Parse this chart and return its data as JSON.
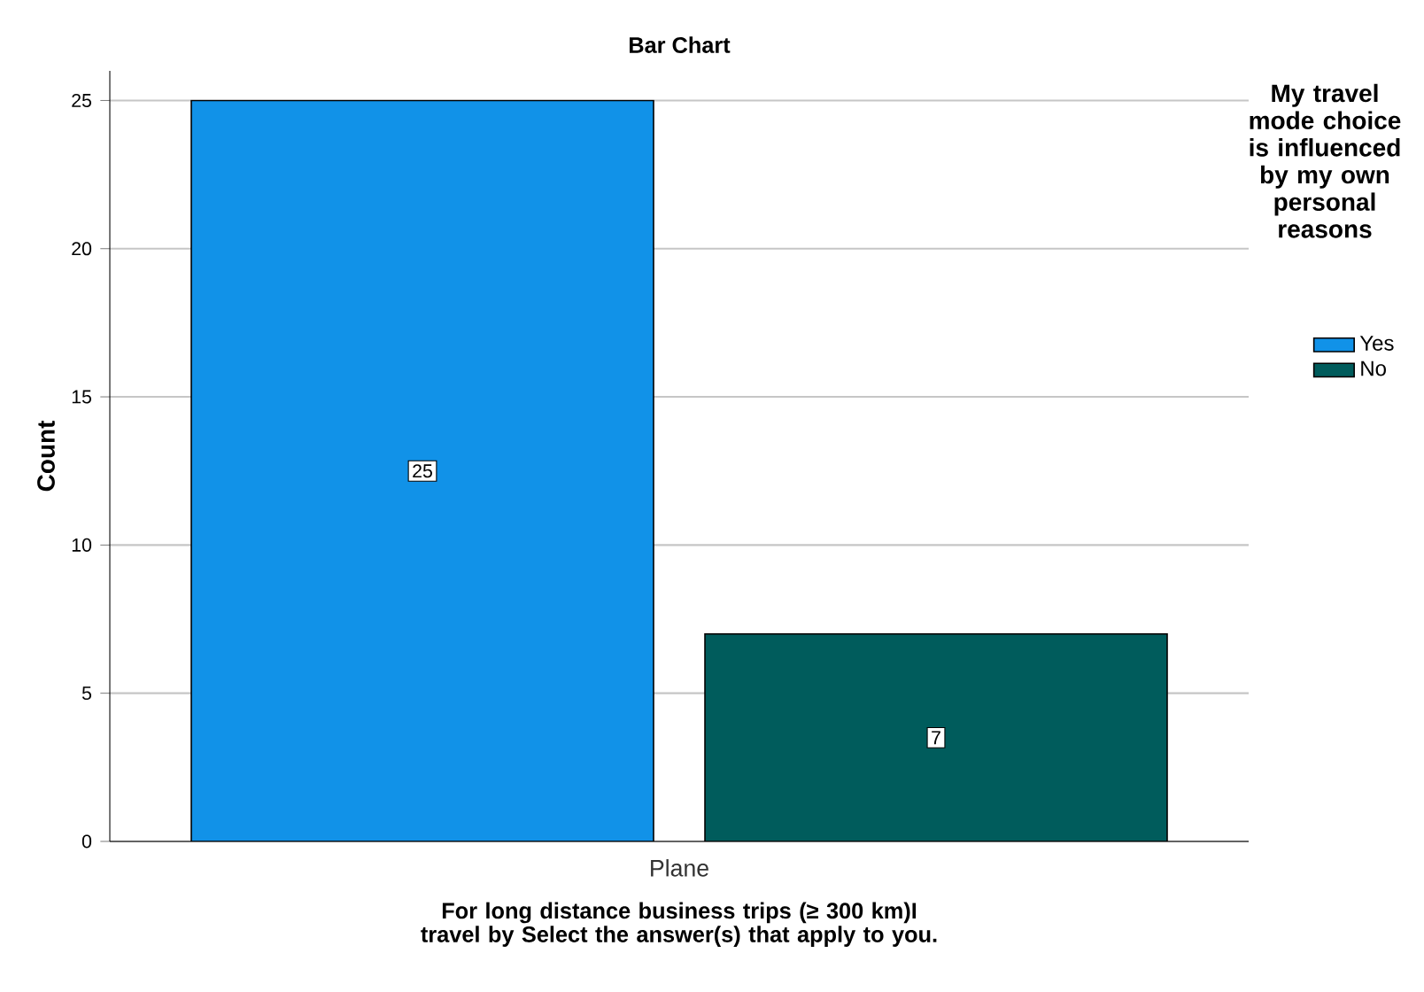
{
  "chart_data": {
    "type": "bar",
    "title": "Bar Chart",
    "xlabel": "For long distance business trips (≥ 300 km)I travel by Select the answer(s) that apply to you.",
    "ylabel": "Count",
    "legend_title": "My travel mode choice is influenced by my own personal reasons",
    "categories": [
      "Plane"
    ],
    "series": [
      {
        "name": "Yes",
        "color": "#1192e8",
        "values": [
          25
        ]
      },
      {
        "name": "No",
        "color": "#005c5c",
        "values": [
          7
        ]
      }
    ],
    "ylim": [
      0,
      26
    ],
    "yticks": [
      0,
      5,
      10,
      15,
      20,
      25
    ],
    "grid": "y",
    "legend": "right",
    "data_labels": true
  }
}
